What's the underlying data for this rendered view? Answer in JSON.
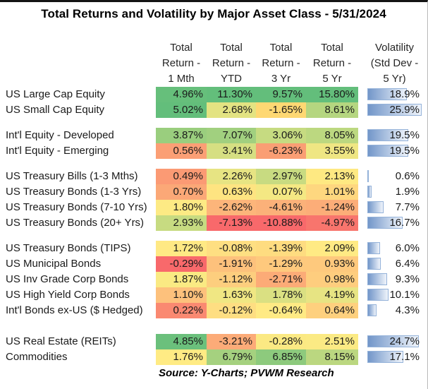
{
  "title": "Total Returns and Volatility by Major Asset Class - 5/31/2024",
  "source_note": "Source:  Y-Charts; PVWM Research",
  "columns": [
    {
      "lines": [
        "Total",
        "Return -",
        "1 Mth"
      ]
    },
    {
      "lines": [
        "Total",
        "Return -",
        "YTD"
      ]
    },
    {
      "lines": [
        "Total",
        "Return -",
        "3 Yr"
      ]
    },
    {
      "lines": [
        "Total",
        "Return -",
        "5 Yr"
      ]
    },
    {
      "lines": [
        "Volatility",
        "(Std Dev -",
        "5 Yr)"
      ]
    }
  ],
  "colors": {
    "cell_text": "#1a1a1a",
    "scale_min_red": "#F8696B",
    "scale_mid_yellow": "#FFEB84",
    "scale_max_green": "#63BE7B",
    "bar_gradient_start": "#7296C9",
    "bar_gradient_end": "#EFF4FB",
    "bar_border": "#94B2D9"
  },
  "chart_data": {
    "type": "heatmap",
    "title": "Total Returns and Volatility by Major Asset Class - 5/31/2024",
    "units": "percent",
    "columns": [
      "Total Return - 1 Mth",
      "Total Return - YTD",
      "Total Return - 3 Yr",
      "Total Return - 5 Yr",
      "Volatility (Std Dev - 5 Yr)"
    ],
    "color_scale_note": "Excel-style 3-color scale applied per return column (red #F8696B -> yellow #FFEB84 -> green #63BE7B); volatility shown as blue gradient data bars scaled 0 to 25.9",
    "volatility_axis_max": 25.9,
    "rows": [
      {
        "group": 1,
        "label": "US Large Cap Equity",
        "returns": [
          4.96,
          11.3,
          9.57,
          15.8
        ],
        "volatility": 18.9,
        "cell_colors": [
          "#66BF7B",
          "#63BE7B",
          "#63BE7B",
          "#63BE7B"
        ]
      },
      {
        "group": 1,
        "label": "US Small Cap Equity",
        "returns": [
          5.02,
          2.68,
          -1.65,
          8.61
        ],
        "volatility": 25.9,
        "cell_colors": [
          "#63BE7B",
          "#E3E382",
          "#FED873",
          "#B5D680"
        ]
      },
      {
        "group": 2,
        "label": "Int'l Equity - Developed",
        "returns": [
          3.87,
          7.07,
          3.06,
          8.05
        ],
        "volatility": 19.5,
        "cell_colors": [
          "#9ACE7E",
          "#A1D07F",
          "#C6DB81",
          "#BCD880"
        ]
      },
      {
        "group": 2,
        "label": "Int'l Equity - Emerging",
        "returns": [
          0.56,
          3.41,
          -6.23,
          3.55
        ],
        "volatility": 19.5,
        "cell_colors": [
          "#FB9F75",
          "#D6DF82",
          "#FA9E74",
          "#EFE683"
        ]
      },
      {
        "group": 3,
        "label": "US Treasury Bills (1-3 Mths)",
        "returns": [
          0.49,
          2.26,
          2.97,
          2.13
        ],
        "volatility": 0.6,
        "cell_colors": [
          "#FB9A74",
          "#E7E483",
          "#C8DB81",
          "#FEE982"
        ]
      },
      {
        "group": 3,
        "label": "US Treasury Bonds (1-3 Yrs)",
        "returns": [
          0.7,
          0.63,
          0.07,
          1.01
        ],
        "volatility": 1.9,
        "cell_colors": [
          "#FBA877",
          "#FEE481",
          "#F4E883",
          "#FED77F"
        ]
      },
      {
        "group": 3,
        "label": "US Treasury Bonds (7-10 Yrs)",
        "returns": [
          1.8,
          -2.62,
          -4.61,
          -1.24
        ],
        "volatility": 7.7,
        "cell_colors": [
          "#FDEA84",
          "#FCB57A",
          "#FBB179",
          "#FCAD78"
        ]
      },
      {
        "group": 3,
        "label": "US Treasury Bonds (20+ Yrs)",
        "returns": [
          2.93,
          -7.13,
          -10.88,
          -4.97
        ],
        "volatility": 16.7,
        "cell_colors": [
          "#C7DB81",
          "#F8696B",
          "#F8696B",
          "#F8756D"
        ]
      },
      {
        "group": 4,
        "label": "US Treasury Bonds (TIPS)",
        "returns": [
          1.72,
          -0.08,
          -1.39,
          2.09
        ],
        "volatility": 6.0,
        "cell_colors": [
          "#FFE984",
          "#FEDF82",
          "#FEDC80",
          "#FFEA84"
        ]
      },
      {
        "group": 4,
        "label": "US Municipal Bonds",
        "returns": [
          -0.29,
          -1.91,
          -1.29,
          0.93
        ],
        "volatility": 6.4,
        "cell_colors": [
          "#F8696B",
          "#FDC17C",
          "#FEC97D",
          "#FEC97D"
        ]
      },
      {
        "group": 4,
        "label": "US Inv Grade Corp Bonds",
        "returns": [
          1.87,
          -1.12,
          -2.71,
          0.98
        ],
        "volatility": 9.3,
        "cell_colors": [
          "#FAEA83",
          "#FDCE7E",
          "#FCAB77",
          "#FECD7E"
        ]
      },
      {
        "group": 4,
        "label": "US High Yield Corp Bonds",
        "returns": [
          1.1,
          1.63,
          1.78,
          4.19
        ],
        "volatility": 10.1,
        "cell_colors": [
          "#FDC17C",
          "#F0E783",
          "#DAE082",
          "#E7E483"
        ]
      },
      {
        "group": 4,
        "label": "Int'l Bonds ex-US ($ Hedged)",
        "returns": [
          0.22,
          -0.12,
          -0.64,
          0.64
        ],
        "volatility": 4.3,
        "cell_colors": [
          "#FA8971",
          "#FEDE82",
          "#FFEA84",
          "#FED07E"
        ]
      },
      {
        "group": 5,
        "label": "US Real Estate (REITs)",
        "returns": [
          4.85,
          -3.21,
          -0.28,
          2.51
        ],
        "volatility": 24.7,
        "cell_colors": [
          "#6BC07C",
          "#FCAB78",
          "#FBE983",
          "#FBEA84"
        ]
      },
      {
        "group": 5,
        "label": "Commodities",
        "returns": [
          1.76,
          6.79,
          6.85,
          8.15
        ],
        "volatility": 17.1,
        "cell_colors": [
          "#FFEB84",
          "#A5D17F",
          "#8DCA7D",
          "#BBD780"
        ]
      }
    ],
    "source": "Source:  Y-Charts; PVWM Research"
  }
}
